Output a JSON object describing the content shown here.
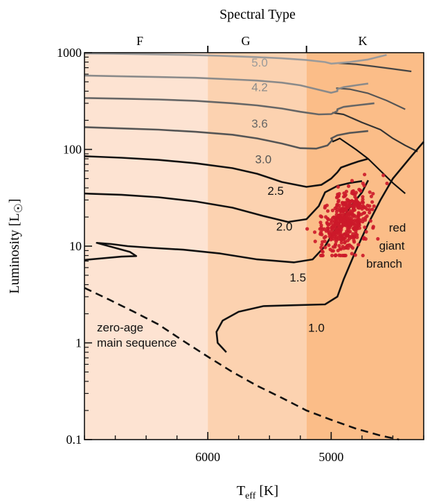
{
  "chart_data": {
    "type": "line",
    "title": "Spectral Type",
    "xlabel": "T",
    "xlabel_sub": "eff",
    "xlabel_unit": " [K]",
    "ylabel": "Luminosity [L",
    "ylabel_sun": "☉",
    "ylabel_close": "]",
    "x_axis": {
      "reversed": true,
      "range": [
        7000,
        4250
      ],
      "ticks": [
        6000,
        5000
      ],
      "minor_step": 250
    },
    "y_axis": {
      "scale": "log",
      "range": [
        0.1,
        1000
      ],
      "ticks": [
        0.1,
        1,
        10,
        100,
        1000
      ],
      "tick_labels": [
        "0.1",
        "1",
        "10",
        "100",
        "1000"
      ]
    },
    "spectral_bands": [
      {
        "label": "F",
        "from": 7000,
        "to": 6000,
        "color": "#fde3d2"
      },
      {
        "label": "G",
        "from": 6000,
        "to": 5200,
        "color": "#fcd2b0"
      },
      {
        "label": "K",
        "from": 5200,
        "to": 4250,
        "color": "#fbbd88"
      }
    ],
    "annotations": {
      "zams": [
        "zero-age",
        "main sequence"
      ],
      "rgb": [
        "red",
        "giant",
        "branch"
      ]
    },
    "zams": [
      [
        7000,
        3.7
      ],
      [
        6800,
        2.8
      ],
      [
        6600,
        2.1
      ],
      [
        6400,
        1.55
      ],
      [
        6200,
        1.05
      ],
      [
        6000,
        0.72
      ],
      [
        5800,
        0.5
      ],
      [
        5600,
        0.36
      ],
      [
        5400,
        0.27
      ],
      [
        5200,
        0.2
      ],
      [
        5000,
        0.16
      ],
      [
        4800,
        0.13
      ],
      [
        4600,
        0.11
      ],
      [
        4450,
        0.1
      ]
    ],
    "series": [
      {
        "name": "1.0",
        "color": "#111111",
        "label_at": [
          5120,
          1.3
        ],
        "points": [
          [
            5850,
            0.8
          ],
          [
            5920,
            1.0
          ],
          [
            5930,
            1.3
          ],
          [
            5880,
            1.7
          ],
          [
            5750,
            2.1
          ],
          [
            5550,
            2.4
          ],
          [
            5300,
            2.45
          ],
          [
            5050,
            2.5
          ],
          [
            4950,
            3.0
          ],
          [
            4900,
            4.5
          ],
          [
            4800,
            9
          ],
          [
            4700,
            17
          ],
          [
            4600,
            30
          ],
          [
            4500,
            50
          ],
          [
            4350,
            85
          ],
          [
            4250,
            120
          ]
        ]
      },
      {
        "name": "1.5",
        "color": "#111111",
        "label_at": [
          5270,
          4.3
        ],
        "points": [
          [
            7000,
            7.2
          ],
          [
            6700,
            7.8
          ],
          [
            6580,
            7.9
          ],
          [
            6630,
            8.7
          ],
          [
            6900,
            10.8
          ],
          [
            6780,
            10.5
          ],
          [
            6650,
            10.0
          ],
          [
            6450,
            9.6
          ],
          [
            6200,
            9.2
          ],
          [
            5900,
            8.4
          ],
          [
            5600,
            7.3
          ],
          [
            5300,
            6.8
          ],
          [
            5150,
            7.3
          ],
          [
            5050,
            10
          ],
          [
            4950,
            16
          ],
          [
            4850,
            25
          ],
          [
            4750,
            36
          ],
          [
            4700,
            48
          ]
        ]
      },
      {
        "name": "2.0",
        "color": "#111111",
        "label_at": [
          5380,
          14.5
        ],
        "points": [
          [
            7000,
            35
          ],
          [
            6700,
            34
          ],
          [
            6400,
            32
          ],
          [
            6100,
            29
          ],
          [
            5800,
            25
          ],
          [
            5550,
            20.5
          ],
          [
            5350,
            17.8
          ],
          [
            5200,
            19
          ],
          [
            5100,
            26
          ],
          [
            5050,
            36
          ],
          [
            4950,
            42
          ],
          [
            4850,
            45
          ],
          [
            4750,
            47
          ]
        ]
      },
      {
        "name": "2.5",
        "color": "#111111",
        "label_at": [
          5450,
          34
        ],
        "points": [
          [
            7000,
            85
          ],
          [
            6700,
            82
          ],
          [
            6400,
            78
          ],
          [
            6100,
            72
          ],
          [
            5800,
            64
          ],
          [
            5600,
            56
          ],
          [
            5400,
            46
          ],
          [
            5200,
            41
          ],
          [
            5080,
            43
          ],
          [
            5000,
            50
          ],
          [
            4950,
            58
          ],
          [
            4920,
            65
          ],
          [
            4850,
            70
          ],
          [
            4780,
            75
          ],
          [
            4700,
            80
          ]
        ]
      },
      {
        "name": "3.0",
        "color": "#555555",
        "label_at": [
          5550,
          72
        ],
        "points": [
          [
            7000,
            170
          ],
          [
            6700,
            165
          ],
          [
            6400,
            160
          ],
          [
            6100,
            152
          ],
          [
            5800,
            142
          ],
          [
            5600,
            130
          ],
          [
            5400,
            115
          ],
          [
            5250,
            103
          ],
          [
            5120,
            102
          ],
          [
            5030,
            110
          ],
          [
            4990,
            125
          ],
          [
            5000,
            130
          ],
          [
            4950,
            140
          ],
          [
            4850,
            148
          ],
          [
            4700,
            155
          ]
        ]
      },
      {
        "name": "3.6",
        "color": "#666666",
        "label_at": [
          5580,
          168
        ],
        "points": [
          [
            7000,
            340
          ],
          [
            6700,
            335
          ],
          [
            6400,
            328
          ],
          [
            6100,
            318
          ],
          [
            5800,
            300
          ],
          [
            5600,
            285
          ],
          [
            5400,
            265
          ],
          [
            5250,
            245
          ],
          [
            5100,
            230
          ],
          [
            5000,
            232
          ],
          [
            4950,
            250
          ],
          [
            4950,
            260
          ],
          [
            4900,
            275
          ],
          [
            4800,
            285
          ],
          [
            4650,
            300
          ]
        ]
      },
      {
        "name": "4.2",
        "color": "#8a8a8a",
        "label_at": [
          5580,
          400
        ],
        "points": [
          [
            7000,
            580
          ],
          [
            6700,
            570
          ],
          [
            6400,
            560
          ],
          [
            6100,
            550
          ],
          [
            5800,
            530
          ],
          [
            5600,
            515
          ],
          [
            5400,
            490
          ],
          [
            5250,
            460
          ],
          [
            5120,
            420
          ],
          [
            5000,
            385
          ],
          [
            4950,
            400
          ],
          [
            4950,
            420
          ],
          [
            4900,
            440
          ],
          [
            4800,
            460
          ],
          [
            4700,
            480
          ]
        ]
      },
      {
        "name": "5.0",
        "color": "#9a9a9a",
        "label_at": [
          5580,
          720
        ],
        "points": [
          [
            7000,
            980
          ],
          [
            6800,
            975
          ],
          [
            6500,
            965
          ],
          [
            6200,
            950
          ],
          [
            5900,
            930
          ],
          [
            5600,
            900
          ],
          [
            5400,
            875
          ],
          [
            5200,
            840
          ],
          [
            5050,
            800
          ],
          [
            5000,
            770
          ],
          [
            4950,
            780
          ],
          [
            4850,
            800
          ],
          [
            4700,
            850
          ],
          [
            4550,
            950
          ]
        ]
      }
    ],
    "extra_tracks": [
      {
        "color": "#111111",
        "points": [
          [
            4990,
            120
          ],
          [
            4930,
            130
          ],
          [
            4800,
            100
          ],
          [
            4700,
            80
          ],
          [
            4600,
            60
          ],
          [
            4500,
            45
          ],
          [
            4400,
            35
          ]
        ]
      },
      {
        "color": "#333333",
        "points": [
          [
            4990,
            240
          ],
          [
            4900,
            230
          ],
          [
            4750,
            190
          ],
          [
            4600,
            160
          ],
          [
            4500,
            130
          ],
          [
            4400,
            110
          ],
          [
            4300,
            95
          ]
        ]
      },
      {
        "color": "#555555",
        "points": [
          [
            4960,
            430
          ],
          [
            4850,
            420
          ],
          [
            4700,
            380
          ],
          [
            4550,
            320
          ],
          [
            4400,
            260
          ]
        ]
      },
      {
        "color": "#444444",
        "points": [
          [
            4940,
            780
          ],
          [
            4800,
            760
          ],
          [
            4650,
            720
          ],
          [
            4500,
            680
          ],
          [
            4350,
            640
          ]
        ]
      }
    ],
    "scatter": {
      "name": "red giants",
      "color": "#cc1a2a",
      "count": 460,
      "center": [
        4880,
        18
      ],
      "spread_teff": 90,
      "spread_logL": 0.25
    }
  }
}
